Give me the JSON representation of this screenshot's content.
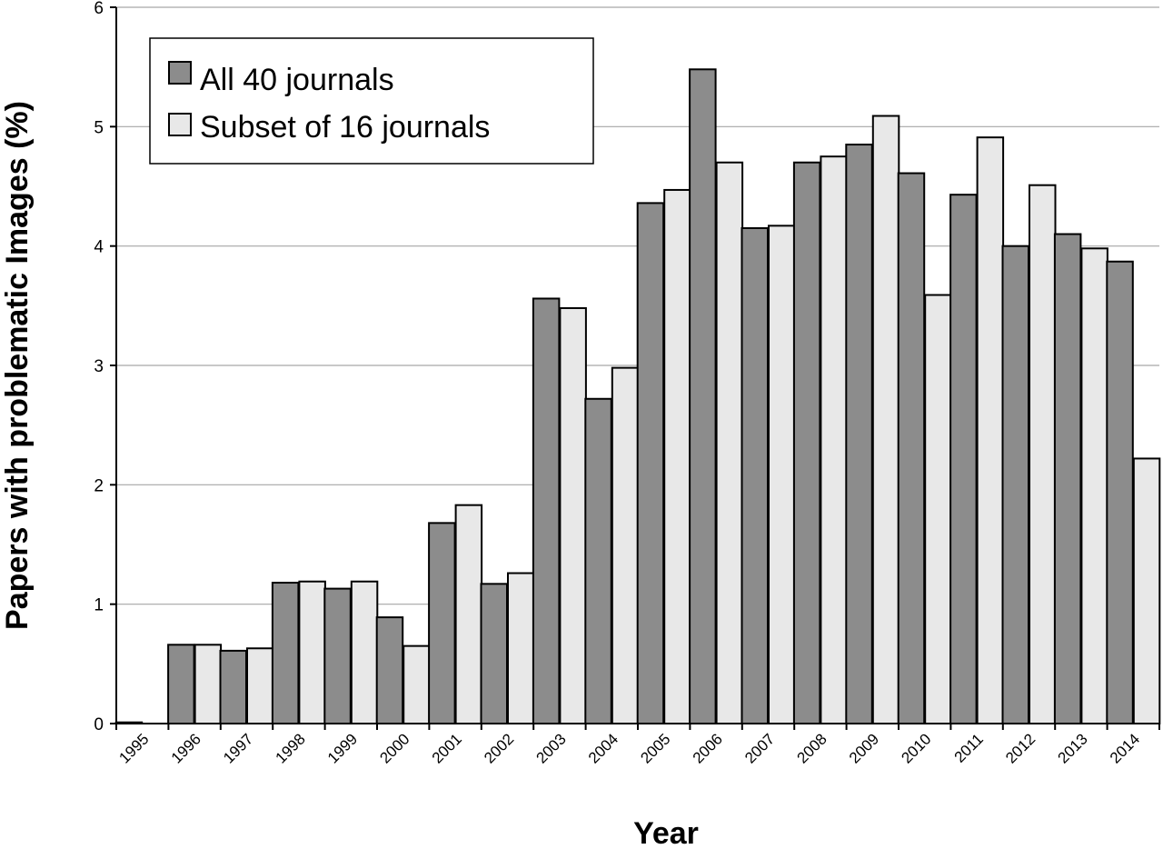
{
  "chart_data": {
    "type": "bar",
    "xlabel": "Year",
    "ylabel": "Papers with problematic Images (%)",
    "ylim": [
      0,
      6
    ],
    "yticks": [
      0,
      1,
      2,
      3,
      4,
      5,
      6
    ],
    "grid": "horizontal",
    "legend": "top-left",
    "categories": [
      "1995",
      "1996",
      "1997",
      "1998",
      "1999",
      "2000",
      "2001",
      "2002",
      "2003",
      "2004",
      "2005",
      "2006",
      "2007",
      "2008",
      "2009",
      "2010",
      "2011",
      "2012",
      "2013",
      "2014"
    ],
    "series": [
      {
        "name": "All 40 journals",
        "color": "#8c8c8c",
        "values": [
          0.01,
          0.66,
          0.61,
          1.18,
          1.13,
          0.89,
          1.68,
          1.17,
          3.56,
          2.72,
          4.36,
          5.48,
          4.15,
          4.7,
          4.85,
          4.61,
          4.43,
          4.0,
          4.1,
          3.87
        ]
      },
      {
        "name": "Subset of 16 journals",
        "color": "#e8e8e8",
        "values": [
          0.0,
          0.66,
          0.63,
          1.19,
          1.19,
          0.65,
          1.83,
          1.26,
          3.48,
          2.98,
          4.47,
          4.7,
          4.17,
          4.75,
          5.09,
          3.59,
          4.91,
          4.51,
          3.98,
          2.22
        ]
      }
    ]
  }
}
